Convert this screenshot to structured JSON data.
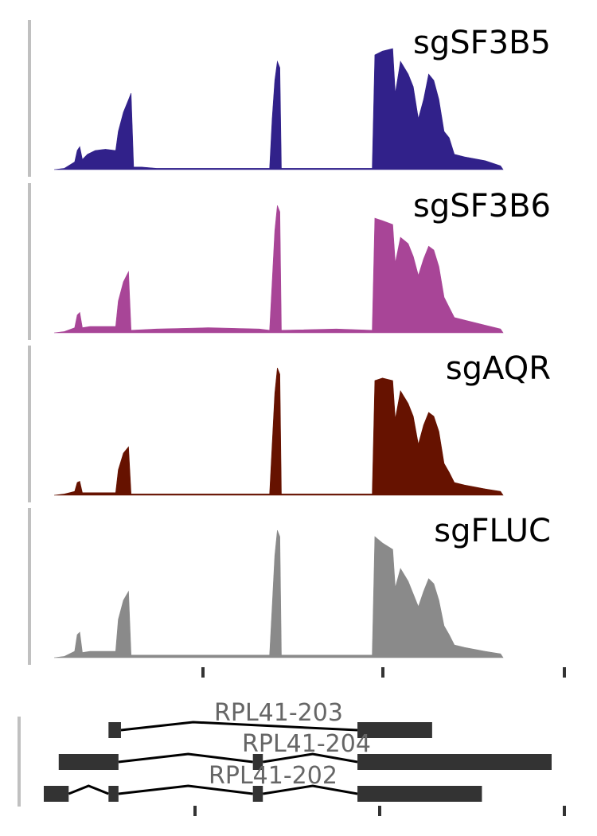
{
  "chart_data": [
    {
      "type": "area",
      "panel": "coverage",
      "tick_labels": [
        "",
        "",
        ""
      ],
      "genomic_ticks": [
        0.35,
        0.7,
        1.05
      ],
      "x_domain": [
        0,
        1.05
      ],
      "peak_scale": 1.0,
      "series": [
        {
          "name": "sgSF3B5",
          "color": "#31218a",
          "values": [
            [
              0.0,
              0
            ],
            [
              0.02,
              0.01
            ],
            [
              0.04,
              0.06
            ],
            [
              0.045,
              0.15
            ],
            [
              0.05,
              0.18
            ],
            [
              0.055,
              0.08
            ],
            [
              0.065,
              0.12
            ],
            [
              0.08,
              0.15
            ],
            [
              0.1,
              0.16
            ],
            [
              0.12,
              0.15
            ],
            [
              0.125,
              0.3
            ],
            [
              0.135,
              0.45
            ],
            [
              0.145,
              0.55
            ],
            [
              0.15,
              0.6
            ],
            [
              0.155,
              0.02
            ],
            [
              0.17,
              0.02
            ],
            [
              0.2,
              0.01
            ],
            [
              0.3,
              0.01
            ],
            [
              0.4,
              0.01
            ],
            [
              0.42,
              0.01
            ],
            [
              0.425,
              0.4
            ],
            [
              0.43,
              0.7
            ],
            [
              0.435,
              0.85
            ],
            [
              0.44,
              0.8
            ],
            [
              0.443,
              0.01
            ],
            [
              0.55,
              0.01
            ],
            [
              0.62,
              0.01
            ],
            [
              0.625,
              0.9
            ],
            [
              0.64,
              0.93
            ],
            [
              0.66,
              0.95
            ],
            [
              0.665,
              0.6
            ],
            [
              0.675,
              0.85
            ],
            [
              0.69,
              0.75
            ],
            [
              0.7,
              0.65
            ],
            [
              0.71,
              0.4
            ],
            [
              0.72,
              0.55
            ],
            [
              0.73,
              0.75
            ],
            [
              0.74,
              0.7
            ],
            [
              0.75,
              0.55
            ],
            [
              0.76,
              0.3
            ],
            [
              0.77,
              0.25
            ],
            [
              0.78,
              0.12
            ],
            [
              0.8,
              0.1
            ],
            [
              0.84,
              0.07
            ],
            [
              0.87,
              0.03
            ],
            [
              0.875,
              0
            ]
          ]
        },
        {
          "name": "sgSF3B6",
          "color": "#a84597",
          "values": [
            [
              0.0,
              0
            ],
            [
              0.02,
              0.01
            ],
            [
              0.04,
              0.04
            ],
            [
              0.045,
              0.14
            ],
            [
              0.05,
              0.16
            ],
            [
              0.055,
              0.04
            ],
            [
              0.07,
              0.05
            ],
            [
              0.1,
              0.05
            ],
            [
              0.12,
              0.05
            ],
            [
              0.125,
              0.25
            ],
            [
              0.135,
              0.4
            ],
            [
              0.145,
              0.48
            ],
            [
              0.15,
              0.02
            ],
            [
              0.2,
              0.03
            ],
            [
              0.3,
              0.04
            ],
            [
              0.4,
              0.03
            ],
            [
              0.42,
              0.02
            ],
            [
              0.425,
              0.4
            ],
            [
              0.43,
              0.8
            ],
            [
              0.435,
              1.0
            ],
            [
              0.44,
              0.95
            ],
            [
              0.443,
              0.02
            ],
            [
              0.55,
              0.03
            ],
            [
              0.62,
              0.02
            ],
            [
              0.625,
              0.9
            ],
            [
              0.64,
              0.88
            ],
            [
              0.66,
              0.85
            ],
            [
              0.665,
              0.55
            ],
            [
              0.675,
              0.75
            ],
            [
              0.69,
              0.7
            ],
            [
              0.7,
              0.6
            ],
            [
              0.71,
              0.45
            ],
            [
              0.72,
              0.58
            ],
            [
              0.73,
              0.68
            ],
            [
              0.74,
              0.65
            ],
            [
              0.75,
              0.52
            ],
            [
              0.76,
              0.28
            ],
            [
              0.77,
              0.2
            ],
            [
              0.78,
              0.12
            ],
            [
              0.8,
              0.1
            ],
            [
              0.84,
              0.06
            ],
            [
              0.87,
              0.03
            ],
            [
              0.875,
              0
            ]
          ]
        },
        {
          "name": "sgAQR",
          "color": "#661200",
          "values": [
            [
              0.0,
              0
            ],
            [
              0.02,
              0.01
            ],
            [
              0.04,
              0.03
            ],
            [
              0.045,
              0.1
            ],
            [
              0.05,
              0.11
            ],
            [
              0.055,
              0.02
            ],
            [
              0.07,
              0.02
            ],
            [
              0.12,
              0.02
            ],
            [
              0.125,
              0.2
            ],
            [
              0.135,
              0.33
            ],
            [
              0.145,
              0.38
            ],
            [
              0.15,
              0.01
            ],
            [
              0.2,
              0.01
            ],
            [
              0.3,
              0.01
            ],
            [
              0.4,
              0.01
            ],
            [
              0.42,
              0.01
            ],
            [
              0.425,
              0.4
            ],
            [
              0.43,
              0.8
            ],
            [
              0.435,
              1.0
            ],
            [
              0.44,
              0.95
            ],
            [
              0.443,
              0.01
            ],
            [
              0.55,
              0.01
            ],
            [
              0.62,
              0.01
            ],
            [
              0.625,
              0.9
            ],
            [
              0.64,
              0.92
            ],
            [
              0.66,
              0.9
            ],
            [
              0.665,
              0.6
            ],
            [
              0.675,
              0.82
            ],
            [
              0.69,
              0.72
            ],
            [
              0.7,
              0.62
            ],
            [
              0.71,
              0.4
            ],
            [
              0.72,
              0.55
            ],
            [
              0.73,
              0.65
            ],
            [
              0.74,
              0.62
            ],
            [
              0.75,
              0.5
            ],
            [
              0.76,
              0.25
            ],
            [
              0.77,
              0.18
            ],
            [
              0.78,
              0.1
            ],
            [
              0.8,
              0.08
            ],
            [
              0.84,
              0.05
            ],
            [
              0.87,
              0.03
            ],
            [
              0.875,
              0
            ]
          ]
        },
        {
          "name": "sgFLUC",
          "color": "#8a8a8a",
          "values": [
            [
              0.0,
              0
            ],
            [
              0.02,
              0.01
            ],
            [
              0.04,
              0.05
            ],
            [
              0.045,
              0.18
            ],
            [
              0.05,
              0.2
            ],
            [
              0.055,
              0.04
            ],
            [
              0.07,
              0.05
            ],
            [
              0.1,
              0.05
            ],
            [
              0.12,
              0.05
            ],
            [
              0.125,
              0.3
            ],
            [
              0.135,
              0.45
            ],
            [
              0.145,
              0.52
            ],
            [
              0.15,
              0.02
            ],
            [
              0.2,
              0.02
            ],
            [
              0.3,
              0.02
            ],
            [
              0.4,
              0.02
            ],
            [
              0.42,
              0.02
            ],
            [
              0.425,
              0.4
            ],
            [
              0.43,
              0.8
            ],
            [
              0.435,
              1.0
            ],
            [
              0.44,
              0.95
            ],
            [
              0.443,
              0.02
            ],
            [
              0.55,
              0.02
            ],
            [
              0.62,
              0.02
            ],
            [
              0.625,
              0.95
            ],
            [
              0.64,
              0.9
            ],
            [
              0.66,
              0.85
            ],
            [
              0.665,
              0.55
            ],
            [
              0.675,
              0.7
            ],
            [
              0.69,
              0.6
            ],
            [
              0.7,
              0.5
            ],
            [
              0.71,
              0.4
            ],
            [
              0.72,
              0.52
            ],
            [
              0.73,
              0.62
            ],
            [
              0.74,
              0.58
            ],
            [
              0.75,
              0.45
            ],
            [
              0.76,
              0.25
            ],
            [
              0.77,
              0.18
            ],
            [
              0.78,
              0.1
            ],
            [
              0.8,
              0.08
            ],
            [
              0.84,
              0.05
            ],
            [
              0.87,
              0.03
            ],
            [
              0.875,
              0
            ]
          ]
        }
      ]
    },
    {
      "type": "gene-model",
      "panel": "transcripts",
      "genomic_ticks": [
        0.35,
        0.7,
        1.05
      ],
      "x_domain": [
        0,
        1.05
      ],
      "transcripts": [
        {
          "name": "RPL41-203",
          "exons": [
            [
              0.13,
              0.155
            ],
            [
              0.63,
              0.78
            ]
          ],
          "introns": [
            [
              0.155,
              0.3,
              0.63
            ]
          ]
        },
        {
          "name": "RPL41-204",
          "exons": [
            [
              0.03,
              0.15
            ],
            [
              0.42,
              0.44
            ],
            [
              0.63,
              1.02
            ]
          ],
          "introns": [
            [
              0.15,
              0.29,
              0.42
            ],
            [
              0.44,
              0.54,
              0.63
            ]
          ]
        },
        {
          "name": "RPL41-202",
          "exons": [
            [
              0.0,
              0.05
            ],
            [
              0.13,
              0.15
            ],
            [
              0.42,
              0.44
            ],
            [
              0.63,
              0.88
            ]
          ],
          "introns": [
            [
              0.05,
              0.09,
              0.13
            ],
            [
              0.15,
              0.29,
              0.42
            ],
            [
              0.44,
              0.54,
              0.63
            ]
          ]
        }
      ]
    }
  ]
}
